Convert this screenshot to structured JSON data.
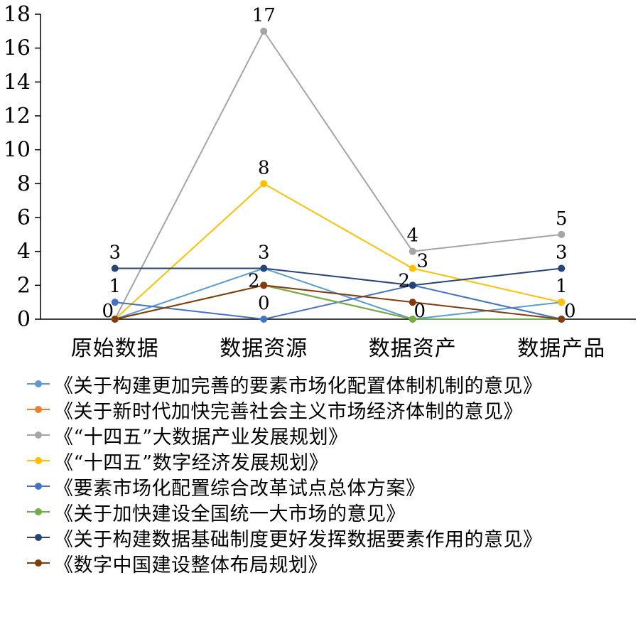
{
  "chart_data": {
    "type": "line",
    "categories": [
      "原始数据",
      "数据资源",
      "数据资产",
      "数据产品"
    ],
    "ylim": [
      0,
      18
    ],
    "yticks": [
      0,
      2,
      4,
      6,
      8,
      10,
      12,
      14,
      16,
      18
    ],
    "grid": false,
    "legend_position": "bottom",
    "series": [
      {
        "name": "《关于构建更加完善的要素市场化配置体制机制的意见》",
        "color": "#5b9bd5",
        "values": [
          0,
          3,
          0,
          1
        ],
        "labels": [
          false,
          false,
          false,
          true
        ]
      },
      {
        "name": "《关于新时代加快完善社会主义市场经济体制的意见》",
        "color": "#ed7d31",
        "values": [
          0,
          2,
          0,
          0
        ],
        "labels": [
          false,
          false,
          false,
          false
        ]
      },
      {
        "name": "《“十四五”大数据产业发展规划》",
        "color": "#a5a5a5",
        "values": [
          0,
          17,
          4,
          5
        ],
        "labels": [
          false,
          true,
          true,
          true
        ]
      },
      {
        "name": "《“十四五”数字经济发展规划》",
        "color": "#ffc000",
        "values": [
          0,
          8,
          3,
          1
        ],
        "labels": [
          false,
          true,
          true,
          false
        ]
      },
      {
        "name": "《要素市场化配置综合改革试点总体方案》",
        "color": "#4472c4",
        "values": [
          1,
          0,
          2,
          0
        ],
        "labels": [
          true,
          true,
          true,
          false
        ]
      },
      {
        "name": "《关于加快建设全国统一大市场的意见》",
        "color": "#70ad47",
        "values": [
          0,
          2,
          0,
          0
        ],
        "labels": [
          false,
          false,
          true,
          false
        ]
      },
      {
        "name": "《关于构建数据基础制度更好发挥数据要素作用的意见》",
        "color": "#264478",
        "values": [
          3,
          3,
          2,
          3
        ],
        "labels": [
          true,
          true,
          false,
          true
        ]
      },
      {
        "name": "《数字中国建设整体布局规划》",
        "color": "#843c0c",
        "values": [
          0,
          2,
          1,
          0
        ],
        "labels": [
          true,
          true,
          false,
          true
        ]
      }
    ]
  }
}
